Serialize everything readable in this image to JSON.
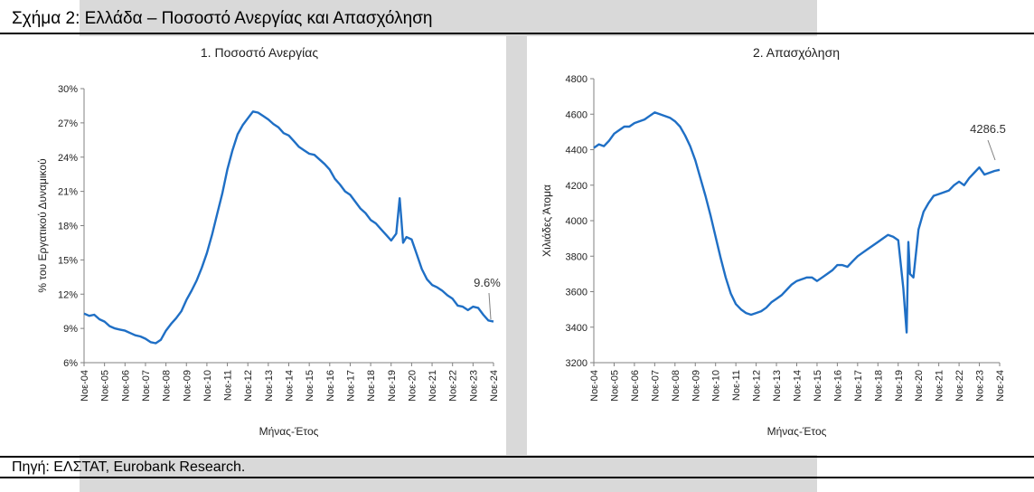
{
  "figure": {
    "title": "Σχήμα 2: Ελλάδα – Ποσοστό Ανεργίας και Απασχόληση",
    "source": "Πηγή: ΕΛΣΤΑΤ, Eurobank Research."
  },
  "colors": {
    "line": "#1f6fc5",
    "axis": "#808080"
  },
  "chart_data": [
    {
      "type": "line",
      "title": "1. Ποσοστό Ανεργίας",
      "xlabel": "Μήνας-Έτος",
      "ylabel": "% του Εργατικού Δυναμικού",
      "x_ticks": [
        "Noε-04",
        "Noε-05",
        "Noε-06",
        "Noε-07",
        "Noε-08",
        "Noε-09",
        "Noε-10",
        "Noε-11",
        "Noε-12",
        "Noε-13",
        "Noε-14",
        "Noε-15",
        "Noε-16",
        "Noε-17",
        "Noε-18",
        "Noε-19",
        "Noε-20",
        "Noε-21",
        "Noε-22",
        "Noε-23",
        "Noε-24"
      ],
      "y_ticks": [
        "6%",
        "9%",
        "12%",
        "15%",
        "18%",
        "21%",
        "24%",
        "27%",
        "30%"
      ],
      "ylim": [
        6,
        30
      ],
      "annotation": "9.6%",
      "x": [
        "Nov-04",
        "Feb-05",
        "May-05",
        "Aug-05",
        "Nov-05",
        "Feb-06",
        "May-06",
        "Aug-06",
        "Nov-06",
        "Feb-07",
        "May-07",
        "Aug-07",
        "Nov-07",
        "Feb-08",
        "May-08",
        "Aug-08",
        "Nov-08",
        "Feb-09",
        "May-09",
        "Aug-09",
        "Nov-09",
        "Feb-10",
        "May-10",
        "Aug-10",
        "Nov-10",
        "Feb-11",
        "May-11",
        "Aug-11",
        "Nov-11",
        "Feb-12",
        "May-12",
        "Aug-12",
        "Nov-12",
        "Feb-13",
        "May-13",
        "Aug-13",
        "Nov-13",
        "Feb-14",
        "May-14",
        "Aug-14",
        "Nov-14",
        "Feb-15",
        "May-15",
        "Aug-15",
        "Nov-15",
        "Feb-16",
        "May-16",
        "Aug-16",
        "Nov-16",
        "Feb-17",
        "May-17",
        "Aug-17",
        "Nov-17",
        "Feb-18",
        "May-18",
        "Aug-18",
        "Nov-18",
        "Feb-19",
        "May-19",
        "Aug-19",
        "Nov-19",
        "Feb-20",
        "Apr-20",
        "May-20",
        "Jun-20",
        "Aug-20",
        "Nov-20",
        "Feb-21",
        "May-21",
        "Aug-21",
        "Nov-21",
        "Feb-22",
        "May-22",
        "Aug-22",
        "Nov-22",
        "Feb-23",
        "May-23",
        "Aug-23",
        "Nov-23",
        "Feb-24",
        "May-24",
        "Aug-24",
        "Nov-24"
      ],
      "series": [
        {
          "values": [
            10.3,
            10.1,
            10.2,
            9.8,
            9.6,
            9.2,
            9.0,
            8.9,
            8.8,
            8.6,
            8.4,
            8.3,
            8.1,
            7.8,
            7.7,
            8.0,
            8.8,
            9.4,
            9.9,
            10.5,
            11.5,
            12.3,
            13.2,
            14.3,
            15.6,
            17.2,
            19.0,
            20.8,
            22.9,
            24.6,
            26.0,
            26.8,
            27.4,
            28.0,
            27.9,
            27.6,
            27.3,
            26.9,
            26.6,
            26.1,
            25.9,
            25.4,
            24.9,
            24.6,
            24.3,
            24.2,
            23.8,
            23.4,
            22.9,
            22.1,
            21.6,
            21.0,
            20.7,
            20.1,
            19.5,
            19.1,
            18.5,
            18.2,
            17.7,
            17.2,
            16.7,
            17.3,
            20.4,
            18.5,
            16.5,
            17.0,
            16.8,
            15.5,
            14.2,
            13.3,
            12.8,
            12.6,
            12.3,
            11.9,
            11.6,
            11.0,
            10.9,
            10.6,
            10.9,
            10.8,
            10.2,
            9.7,
            9.6
          ]
        }
      ]
    },
    {
      "type": "line",
      "title": "2. Απασχόληση",
      "xlabel": "Μήνας-Έτος",
      "ylabel": "Χιλιάδες Άτομα",
      "x_ticks": [
        "Noε-04",
        "Noε-05",
        "Noε-06",
        "Noε-07",
        "Noε-08",
        "Noε-09",
        "Noε-10",
        "Noε-11",
        "Noε-12",
        "Noε-13",
        "Noε-14",
        "Noε-15",
        "Noε-16",
        "Noε-17",
        "Noε-18",
        "Noε-19",
        "Noε-20",
        "Noε-21",
        "Noε-22",
        "Noε-23",
        "Noε-24"
      ],
      "y_ticks": [
        "3200",
        "3400",
        "3600",
        "3800",
        "4000",
        "4200",
        "4400",
        "4600",
        "4800"
      ],
      "ylim": [
        3200,
        4800
      ],
      "annotation": "4286.5",
      "x": [
        "Nov-04",
        "Feb-05",
        "May-05",
        "Aug-05",
        "Nov-05",
        "Feb-06",
        "May-06",
        "Aug-06",
        "Nov-06",
        "Feb-07",
        "May-07",
        "Aug-07",
        "Nov-07",
        "Feb-08",
        "May-08",
        "Aug-08",
        "Nov-08",
        "Feb-09",
        "May-09",
        "Aug-09",
        "Nov-09",
        "Feb-10",
        "May-10",
        "Aug-10",
        "Nov-10",
        "Feb-11",
        "May-11",
        "Aug-11",
        "Nov-11",
        "Feb-12",
        "May-12",
        "Aug-12",
        "Nov-12",
        "Feb-13",
        "May-13",
        "Aug-13",
        "Nov-13",
        "Feb-14",
        "May-14",
        "Aug-14",
        "Nov-14",
        "Feb-15",
        "May-15",
        "Aug-15",
        "Nov-15",
        "Feb-16",
        "May-16",
        "Aug-16",
        "Nov-16",
        "Feb-17",
        "May-17",
        "Aug-17",
        "Nov-17",
        "Feb-18",
        "May-18",
        "Aug-18",
        "Nov-18",
        "Feb-19",
        "May-19",
        "Aug-19",
        "Nov-19",
        "Feb-20",
        "Apr-20",
        "May-20",
        "Jun-20",
        "Aug-20",
        "Nov-20",
        "Feb-21",
        "May-21",
        "Aug-21",
        "Nov-21",
        "Feb-22",
        "May-22",
        "Aug-22",
        "Nov-22",
        "Feb-23",
        "May-23",
        "Aug-23",
        "Nov-23",
        "Feb-24",
        "May-24",
        "Aug-24",
        "Nov-24"
      ],
      "series": [
        {
          "values": [
            4410,
            4430,
            4420,
            4450,
            4490,
            4510,
            4530,
            4530,
            4550,
            4560,
            4570,
            4590,
            4610,
            4600,
            4590,
            4580,
            4560,
            4530,
            4480,
            4420,
            4340,
            4240,
            4140,
            4030,
            3910,
            3790,
            3680,
            3590,
            3530,
            3500,
            3480,
            3470,
            3480,
            3490,
            3510,
            3540,
            3560,
            3580,
            3610,
            3640,
            3660,
            3670,
            3680,
            3680,
            3660,
            3680,
            3700,
            3720,
            3750,
            3750,
            3740,
            3770,
            3800,
            3820,
            3840,
            3860,
            3880,
            3900,
            3920,
            3910,
            3890,
            3620,
            3370,
            3880,
            3700,
            3680,
            3950,
            4050,
            4100,
            4140,
            4150,
            4160,
            4170,
            4200,
            4220,
            4200,
            4240,
            4270,
            4300,
            4260,
            4270,
            4280,
            4286.5
          ]
        }
      ]
    }
  ]
}
